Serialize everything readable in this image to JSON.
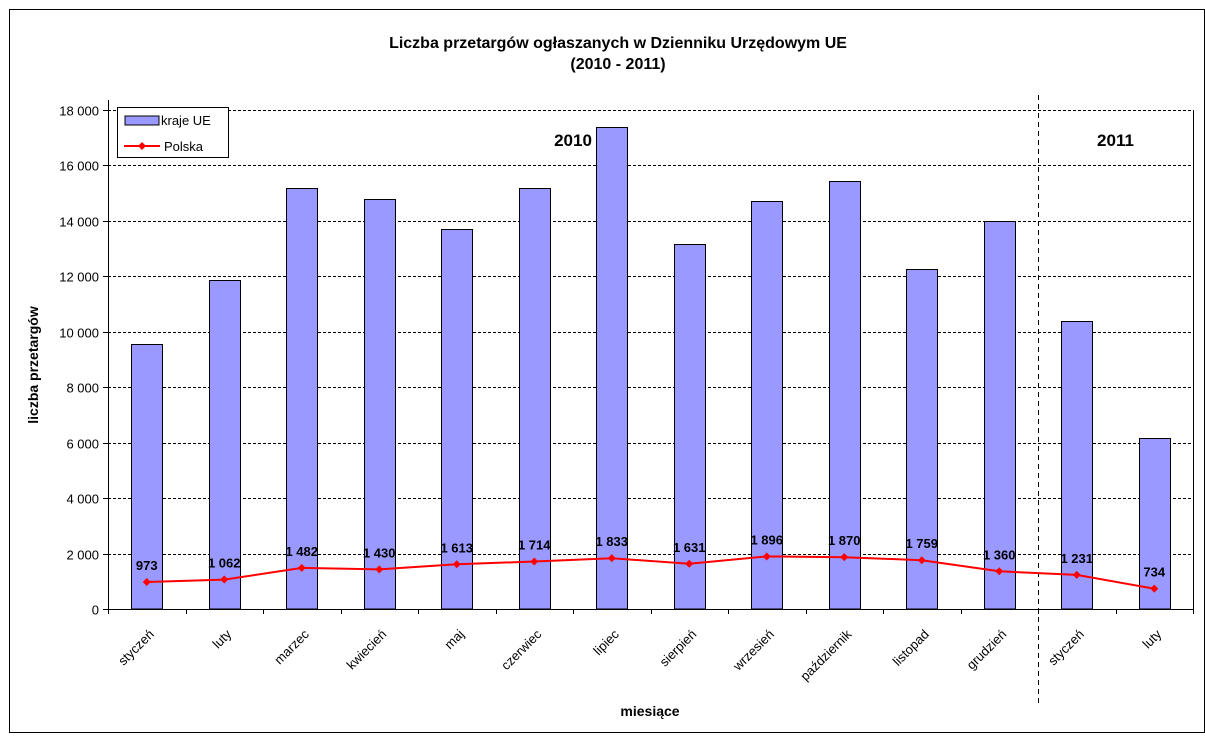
{
  "chart_data": {
    "type": "bar",
    "title": "Liczba przetargów ogłaszanych w Dzienniku Urzędowym UE",
    "subtitle": "(2010 - 2011)",
    "xlabel": "miesiące",
    "ylabel": "liczba przetargów",
    "ylim": [
      0,
      18000
    ],
    "yticks": [
      0,
      2000,
      4000,
      6000,
      8000,
      10000,
      12000,
      14000,
      16000,
      18000
    ],
    "ytick_labels": [
      "0",
      "2 000",
      "4 000",
      "6 000",
      "8 000",
      "10 000",
      "12 000",
      "14 000",
      "16 000",
      "18 000"
    ],
    "grid": "horizontal dashed",
    "legend_position": "top-left",
    "categories": [
      "styczeń",
      "luty",
      "marzec",
      "kwiecień",
      "maj",
      "czerwiec",
      "lipiec",
      "sierpień",
      "wrzesień",
      "październik",
      "listopad",
      "grudzień",
      "styczeń",
      "luty"
    ],
    "year_labels": [
      {
        "text": "2010",
        "category_index": 5.5
      },
      {
        "text": "2011",
        "category_index": 12.5
      }
    ],
    "year_divider_after_index": 11,
    "series": [
      {
        "name": "kraje UE",
        "type": "bar",
        "color": "#9999ff",
        "values": [
          9550,
          11850,
          15200,
          14800,
          13700,
          15200,
          17380,
          13150,
          14700,
          15430,
          12250,
          14000,
          10400,
          6170
        ]
      },
      {
        "name": "Polska",
        "type": "line",
        "color": "#ff0000",
        "values": [
          973,
          1062,
          1482,
          1430,
          1613,
          1714,
          1833,
          1631,
          1896,
          1870,
          1759,
          1360,
          1231,
          734
        ],
        "labels": [
          "973",
          "1 062",
          "1 482",
          "1 430",
          "1 613",
          "1 714",
          "1 833",
          "1 631",
          "1 896",
          "1 870",
          "1 759",
          "1 360",
          "1 231",
          "734"
        ]
      }
    ]
  }
}
